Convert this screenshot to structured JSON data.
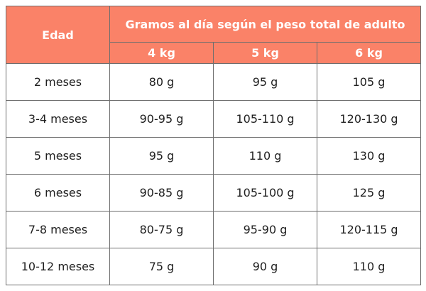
{
  "header": {
    "age_label": "Edad",
    "group_label": "Gramos al día según el peso total de adulto",
    "weights": [
      "4 kg",
      "5 kg",
      "6 kg"
    ]
  },
  "rows": [
    {
      "age": "2 meses",
      "values": [
        "80 g",
        "95 g",
        "105 g"
      ]
    },
    {
      "age": "3-4 meses",
      "values": [
        "90-95 g",
        "105-110 g",
        "120-130 g"
      ]
    },
    {
      "age": "5 meses",
      "values": [
        "95 g",
        "110 g",
        "130 g"
      ]
    },
    {
      "age": "6 meses",
      "values": [
        "90-85 g",
        "105-100 g",
        "125 g"
      ]
    },
    {
      "age": "7-8 meses",
      "values": [
        "80-75 g",
        "95-90 g",
        "120-115 g"
      ]
    },
    {
      "age": "10-12 meses",
      "values": [
        "75 g",
        "90 g",
        "110 g"
      ]
    }
  ],
  "colors": {
    "header_bg": "#fa8268",
    "header_text": "#ffffff",
    "border": "#6e6e6e"
  }
}
